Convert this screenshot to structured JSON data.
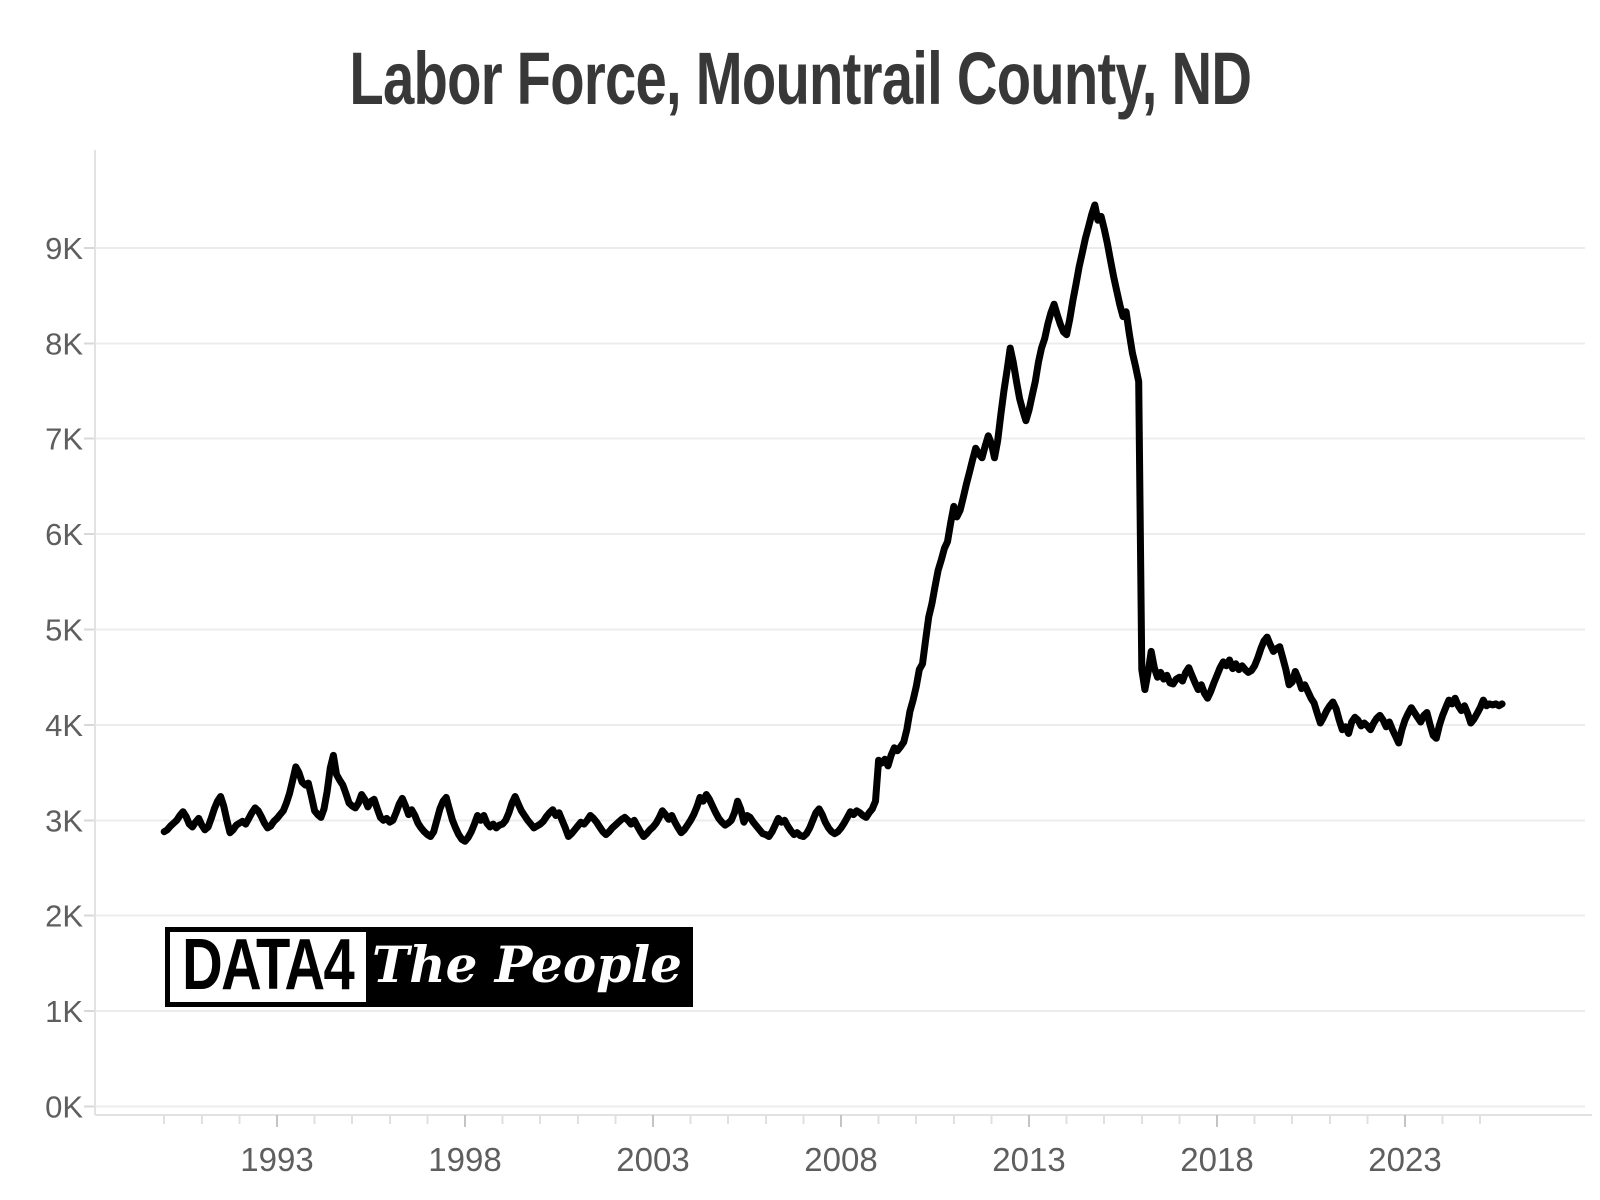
{
  "header": {
    "title": "Labor Force, Mountrail County, ND"
  },
  "logo": {
    "left_text": "DATA4",
    "right_text": "The People"
  },
  "colors": {
    "title": "#383838",
    "line": "#000000",
    "axis_label": "#5e5e5e",
    "gridline": "#ececec",
    "axis_line": "#e2e2e2",
    "y_tick": "#d8d8d8",
    "x_minor_tick": "#e0e0e0",
    "x_major_tick": "#c4c4c4",
    "background": "#ffffff"
  },
  "chart_data": {
    "type": "line",
    "title": "Labor Force, Mountrail County, ND",
    "xlabel": "",
    "ylabel": "",
    "unit": "thousands of persons",
    "frequency": "monthly",
    "start": {
      "year": 1990,
      "month": 1
    },
    "end": {
      "year": 2025,
      "month": 8
    },
    "grid": "horizontal",
    "legend": "none",
    "ylim_thousands": [
      0,
      9.9
    ],
    "xlim_years": [
      1988.2,
      2027.8
    ],
    "y_tick_labels": [
      "0K",
      "1K",
      "2K",
      "3K",
      "4K",
      "5K",
      "6K",
      "7K",
      "8K",
      "9K"
    ],
    "x_tick_labels": [
      "1993",
      "1998",
      "2003",
      "2008",
      "2013",
      "2018",
      "2023"
    ],
    "x_minor_tick_years": [
      1990,
      2025
    ],
    "series_name": "Labor Force",
    "values": [
      2.88,
      2.9,
      2.94,
      2.97,
      3.0,
      3.05,
      3.09,
      3.04,
      2.96,
      2.93,
      2.98,
      3.02,
      2.95,
      2.9,
      2.93,
      3.02,
      3.12,
      3.2,
      3.25,
      3.15,
      3.0,
      2.87,
      2.9,
      2.95,
      2.97,
      2.99,
      2.96,
      3.02,
      3.08,
      3.13,
      3.1,
      3.04,
      2.97,
      2.92,
      2.94,
      2.99,
      3.02,
      3.06,
      3.1,
      3.18,
      3.28,
      3.42,
      3.56,
      3.5,
      3.4,
      3.37,
      3.39,
      3.25,
      3.1,
      3.06,
      3.03,
      3.12,
      3.3,
      3.55,
      3.68,
      3.48,
      3.42,
      3.37,
      3.28,
      3.18,
      3.15,
      3.13,
      3.18,
      3.27,
      3.22,
      3.14,
      3.2,
      3.22,
      3.12,
      3.03,
      3.0,
      3.02,
      2.98,
      3.0,
      3.08,
      3.17,
      3.23,
      3.15,
      3.06,
      3.11,
      3.05,
      2.97,
      2.92,
      2.88,
      2.85,
      2.83,
      2.88,
      3.0,
      3.12,
      3.2,
      3.24,
      3.12,
      3.0,
      2.92,
      2.85,
      2.8,
      2.78,
      2.82,
      2.88,
      2.96,
      3.05,
      3.0,
      3.05,
      2.97,
      2.93,
      2.96,
      2.92,
      2.95,
      2.96,
      3.0,
      3.08,
      3.18,
      3.25,
      3.17,
      3.1,
      3.05,
      3.0,
      2.96,
      2.92,
      2.94,
      2.96,
      2.99,
      3.04,
      3.08,
      3.11,
      3.05,
      3.08,
      3.0,
      2.92,
      2.83,
      2.86,
      2.9,
      2.94,
      2.98,
      2.96,
      3.0,
      3.05,
      3.02,
      2.98,
      2.93,
      2.88,
      2.85,
      2.88,
      2.92,
      2.95,
      2.98,
      3.01,
      3.03,
      3.0,
      2.96,
      3.0,
      2.94,
      2.88,
      2.83,
      2.86,
      2.9,
      2.93,
      2.97,
      3.03,
      3.1,
      3.06,
      3.01,
      3.05,
      2.98,
      2.92,
      2.87,
      2.9,
      2.95,
      3.0,
      3.06,
      3.14,
      3.24,
      3.2,
      3.27,
      3.22,
      3.15,
      3.08,
      3.02,
      2.98,
      2.95,
      2.97,
      3.0,
      3.08,
      3.2,
      3.12,
      2.98,
      3.05,
      3.03,
      2.98,
      2.94,
      2.9,
      2.86,
      2.85,
      2.83,
      2.88,
      2.95,
      3.02,
      2.98,
      3.0,
      2.94,
      2.89,
      2.85,
      2.87,
      2.84,
      2.83,
      2.86,
      2.92,
      3.0,
      3.08,
      3.12,
      3.06,
      2.98,
      2.92,
      2.88,
      2.86,
      2.88,
      2.92,
      2.97,
      3.03,
      3.09,
      3.06,
      3.1,
      3.08,
      3.05,
      3.03,
      3.08,
      3.12,
      3.2,
      3.63,
      3.6,
      3.64,
      3.57,
      3.68,
      3.76,
      3.73,
      3.77,
      3.82,
      3.95,
      4.14,
      4.26,
      4.4,
      4.58,
      4.64,
      4.89,
      5.13,
      5.27,
      5.45,
      5.62,
      5.73,
      5.85,
      5.92,
      6.12,
      6.29,
      6.18,
      6.25,
      6.38,
      6.52,
      6.65,
      6.78,
      6.9,
      6.84,
      6.8,
      6.92,
      7.03,
      6.95,
      6.8,
      6.98,
      7.25,
      7.5,
      7.72,
      7.95,
      7.8,
      7.6,
      7.42,
      7.3,
      7.19,
      7.3,
      7.45,
      7.6,
      7.8,
      7.95,
      8.05,
      8.2,
      8.32,
      8.41,
      8.3,
      8.2,
      8.12,
      8.09,
      8.25,
      8.45,
      8.62,
      8.8,
      8.95,
      9.1,
      9.22,
      9.35,
      9.45,
      9.29,
      9.33,
      9.2,
      9.05,
      8.87,
      8.7,
      8.55,
      8.4,
      8.28,
      8.33,
      8.1,
      7.9,
      7.76,
      7.6,
      4.58,
      4.37,
      4.55,
      4.77,
      4.6,
      4.5,
      4.55,
      4.48,
      4.52,
      4.44,
      4.43,
      4.48,
      4.5,
      4.46,
      4.55,
      4.6,
      4.52,
      4.44,
      4.37,
      4.42,
      4.33,
      4.28,
      4.35,
      4.44,
      4.52,
      4.6,
      4.66,
      4.62,
      4.68,
      4.59,
      4.64,
      4.58,
      4.62,
      4.58,
      4.55,
      4.57,
      4.62,
      4.7,
      4.8,
      4.88,
      4.92,
      4.84,
      4.77,
      4.8,
      4.82,
      4.7,
      4.58,
      4.42,
      4.45,
      4.56,
      4.48,
      4.38,
      4.42,
      4.35,
      4.28,
      4.23,
      4.12,
      4.02,
      4.08,
      4.15,
      4.2,
      4.24,
      4.17,
      4.05,
      3.95,
      3.98,
      3.91,
      4.03,
      4.08,
      4.05,
      3.99,
      4.02,
      3.99,
      3.95,
      4.02,
      4.07,
      4.1,
      4.05,
      3.98,
      4.03,
      3.95,
      3.88,
      3.81,
      3.95,
      4.05,
      4.12,
      4.18,
      4.13,
      4.08,
      4.03,
      4.1,
      4.13,
      4.0,
      3.89,
      3.86,
      4.0,
      4.1,
      4.18,
      4.26,
      4.22,
      4.28,
      4.2,
      4.15,
      4.2,
      4.12,
      4.02,
      4.06,
      4.12,
      4.18,
      4.26,
      4.2,
      4.22,
      4.21,
      4.22,
      4.2,
      4.22
    ]
  }
}
